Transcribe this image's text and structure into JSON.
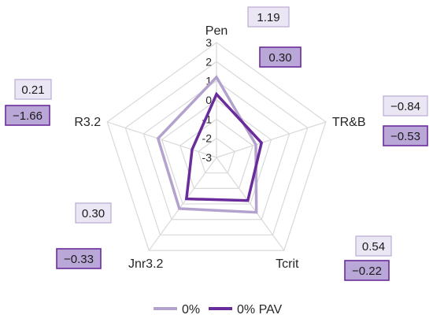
{
  "chart_data": {
    "type": "radar",
    "axes": [
      "Pen",
      "TR&B",
      "Tcrit",
      "Jnr3.2",
      "R3.2"
    ],
    "range": [
      -3,
      3
    ],
    "ticks": [
      "3",
      "2",
      "1",
      "0",
      "-1",
      "-2",
      "-3"
    ],
    "grid": true,
    "legend_position": "bottom",
    "series": [
      {
        "name": "0%",
        "values": [
          1.19,
          -0.84,
          0.54,
          0.3,
          0.21
        ],
        "labels": [
          "1.19",
          "−0.84",
          "0.54",
          "0.30",
          "0.21"
        ],
        "color": "#b3a2cd"
      },
      {
        "name": "0% PAV",
        "values": [
          0.3,
          -0.53,
          -0.22,
          -0.33,
          -1.66
        ],
        "labels": [
          "0.30",
          "−0.53",
          "−0.22",
          "−0.33",
          "−1.66"
        ],
        "color": "#6a2c9a"
      }
    ],
    "box_colors": {
      "light_fill": "#ebe6f3",
      "light_stroke": "#b9a9d4",
      "dark_fill": "#b9a7d8",
      "dark_stroke": "#6a2c9a"
    }
  }
}
